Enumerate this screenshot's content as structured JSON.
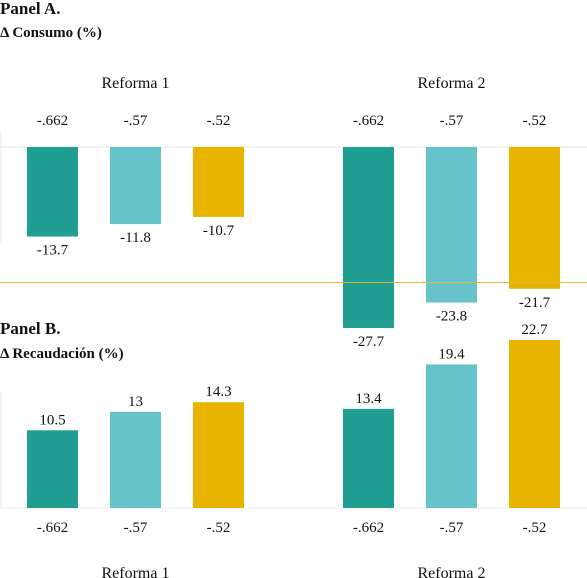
{
  "panels": [
    {
      "title": "Panel A.",
      "subtitle": "Δ Consumo (%)"
    },
    {
      "title": "Panel B.",
      "subtitle": "Δ Recaudación (%)"
    }
  ],
  "colors": {
    "series": [
      "#1f9e91",
      "#66c3c9",
      "#e8b400"
    ],
    "divider": "#e1b93a",
    "axis": "#e8e8e8"
  },
  "chart_data": [
    {
      "type": "bar",
      "title": "Δ Consumo (%)",
      "categories": [
        "Reforma 1",
        "Reforma 2"
      ],
      "series_labels": [
        "-.662",
        "-.57",
        "-.52"
      ],
      "series": [
        {
          "name": "-.662",
          "values": [
            -13.7,
            -27.7
          ]
        },
        {
          "name": "-.57",
          "values": [
            -11.8,
            -23.8
          ]
        },
        {
          "name": "-.52",
          "values": [
            -10.7,
            -21.7
          ]
        }
      ],
      "value_labels": [
        [
          "-13.7",
          "-27.7"
        ],
        [
          "-11.8",
          "-23.8"
        ],
        [
          "-10.7",
          "-21.7"
        ]
      ],
      "ylim": [
        -30,
        0
      ],
      "xlabel": "",
      "ylabel": "",
      "category_label_position": "top",
      "series_label_position": "top"
    },
    {
      "type": "bar",
      "title": "Δ Recaudación (%)",
      "categories": [
        "Reforma 1",
        "Reforma 2"
      ],
      "series_labels": [
        "-.662",
        "-.57",
        "-.52"
      ],
      "series": [
        {
          "name": "-.662",
          "values": [
            10.5,
            13.4
          ]
        },
        {
          "name": "-.57",
          "values": [
            13,
            19.4
          ]
        },
        {
          "name": "-.52",
          "values": [
            14.3,
            22.7
          ]
        }
      ],
      "value_labels": [
        [
          "10.5",
          "13.4"
        ],
        [
          "13",
          "19.4"
        ],
        [
          "14.3",
          "22.7"
        ]
      ],
      "ylim": [
        0,
        25
      ],
      "xlabel": "",
      "ylabel": "",
      "category_label_position": "bottom",
      "series_label_position": "bottom"
    }
  ]
}
